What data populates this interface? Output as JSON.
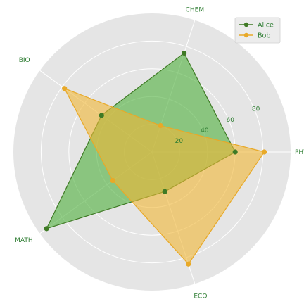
{
  "chart_data": {
    "type": "radar",
    "axes": [
      "PHY",
      "CHEM",
      "BIO",
      "MATH",
      "ECO"
    ],
    "rmax": 100,
    "rticks": [
      20,
      40,
      60,
      80
    ],
    "grid": true,
    "legend_position": "top-right",
    "series": [
      {
        "name": "Alice",
        "values": [
          60,
          75,
          45,
          94,
          30
        ],
        "color": "#3f7a25",
        "fill": "#4caf3a"
      },
      {
        "name": "Bob",
        "values": [
          81,
          20,
          78,
          35,
          85
        ],
        "color": "#e8a928",
        "fill": "#f0b534"
      }
    ]
  }
}
